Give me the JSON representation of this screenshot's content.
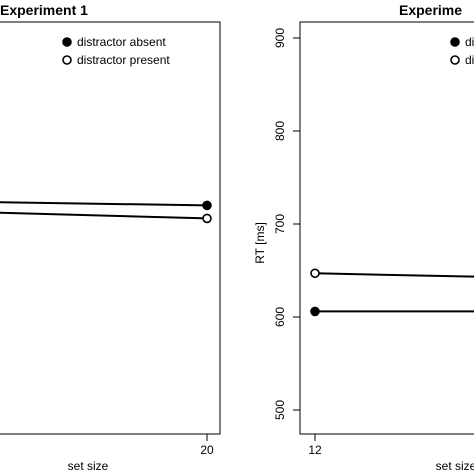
{
  "chart_data": [
    {
      "type": "line",
      "title": "Experiment 1",
      "xlabel": "set size",
      "ylabel": "",
      "x_ticks": [
        "20"
      ],
      "y_ticks": [],
      "legend": [
        "distractor absent",
        "distractor present"
      ],
      "legend_position": "top-right",
      "series": [
        {
          "name": "distractor absent",
          "marker": "filled-circle",
          "x": [
            12,
            20
          ],
          "y": [
            725,
            720
          ]
        },
        {
          "name": "distractor present",
          "marker": "open-circle",
          "x": [
            12,
            20
          ],
          "y": [
            715,
            706
          ]
        }
      ],
      "xlim": [
        12,
        20
      ],
      "ylim": [
        500,
        900
      ],
      "grid": false
    },
    {
      "type": "line",
      "title": "Experime",
      "xlabel": "set size",
      "ylabel": "RT [ms]",
      "x_ticks": [
        "12"
      ],
      "y_ticks": [
        "500",
        "600",
        "700",
        "800",
        "900"
      ],
      "legend": [
        "di",
        "di"
      ],
      "legend_position": "top-right",
      "series": [
        {
          "name": "di",
          "marker": "filled-circle",
          "x": [
            12,
            20
          ],
          "y": [
            606,
            606
          ]
        },
        {
          "name": "di",
          "marker": "open-circle",
          "x": [
            12,
            20
          ],
          "y": [
            647,
            640
          ]
        }
      ],
      "xlim": [
        12,
        20
      ],
      "ylim": [
        500,
        900
      ],
      "grid": false
    }
  ]
}
